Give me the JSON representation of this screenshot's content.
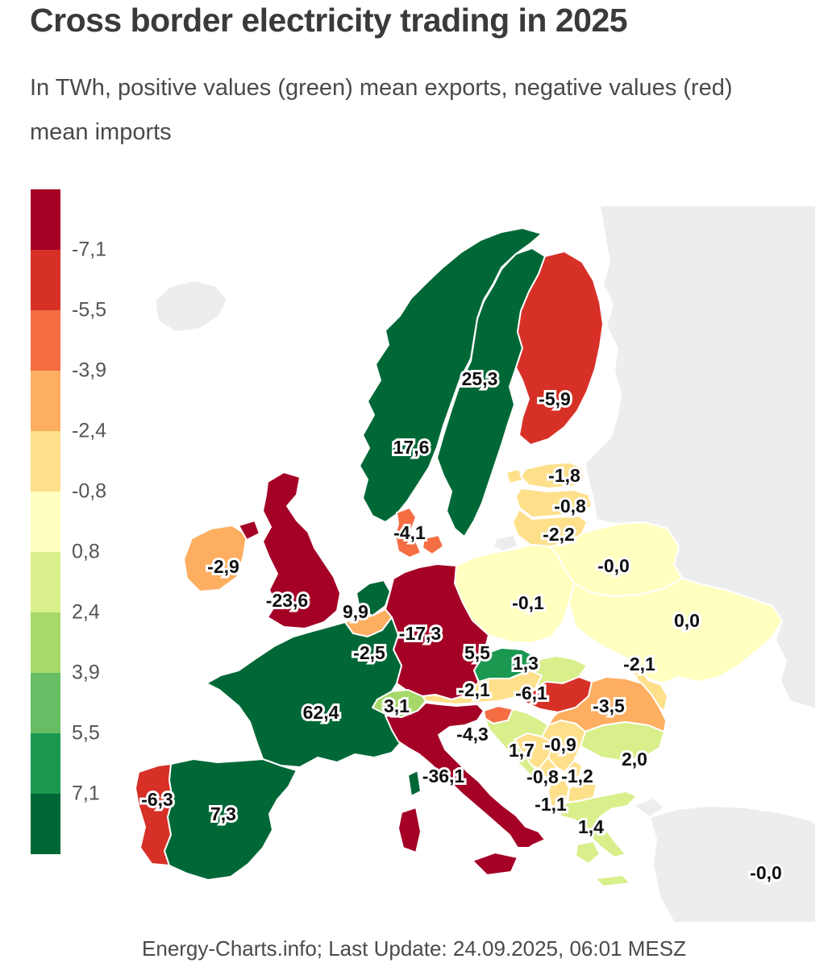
{
  "header": {
    "title": "Cross border electricity trading in 2025",
    "subtitle": "In TWh, positive values (green) mean exports, negative values (red) mean imports"
  },
  "legend": {
    "position": "left",
    "tick_labels": [
      "-7,1",
      "-5,5",
      "-3,9",
      "-2,4",
      "-0,8",
      "0,8",
      "2,4",
      "3,9",
      "5,5",
      "7,1"
    ],
    "colors": [
      "#a50026",
      "#d73027",
      "#f46d43",
      "#fdae61",
      "#fee08b",
      "#ffffbf",
      "#d9ef8b",
      "#a6d96a",
      "#66bd63",
      "#1a9850",
      "#006837"
    ]
  },
  "map": {
    "sea_color": "#ffffff",
    "border_color": "#ffffff",
    "nodata_color": "#ededed",
    "unlabeled_regions": [
      {
        "id": "iceland",
        "color": "#ededed"
      },
      {
        "id": "russia",
        "color": "#ededed"
      },
      {
        "id": "kaliningrad",
        "color": "#ededed"
      },
      {
        "id": "kosovo",
        "color": "#fee08b"
      },
      {
        "id": "north-macedonia",
        "color": "#fee08b"
      }
    ]
  },
  "footer": {
    "attribution": "Energy-Charts.info; Last Update: 24.09.2025, 06:01 MESZ"
  },
  "chart_data": {
    "type": "heatmap",
    "map_type": "choropleth",
    "title": "Cross border electricity trading in 2025",
    "unit": "TWh",
    "value_meaning": "positive values (green) = exports, negative values (red) = imports",
    "color_scale": {
      "ticks": [
        -7.1,
        -5.5,
        -3.9,
        -2.4,
        -0.8,
        0.8,
        2.4,
        3.9,
        5.5,
        7.1
      ],
      "colors": [
        "#a50026",
        "#d73027",
        "#f46d43",
        "#fdae61",
        "#fee08b",
        "#ffffbf",
        "#d9ef8b",
        "#a6d96a",
        "#66bd63",
        "#1a9850",
        "#006837"
      ]
    },
    "countries": [
      {
        "id": "sweden",
        "name": "Sweden",
        "label": "25,3",
        "value": 25.3,
        "color": "#006837"
      },
      {
        "id": "finland",
        "name": "Finland",
        "label": "-5,9",
        "value": -5.9,
        "color": "#d73027"
      },
      {
        "id": "norway",
        "name": "Norway",
        "label": "17,6",
        "value": 17.6,
        "color": "#006837"
      },
      {
        "id": "estonia",
        "name": "Estonia",
        "label": "-1,8",
        "value": -1.8,
        "color": "#fee08b"
      },
      {
        "id": "latvia",
        "name": "Latvia",
        "label": "-0,8",
        "value": -0.8,
        "color": "#fee08b"
      },
      {
        "id": "lithuania",
        "name": "Lithuania",
        "label": "-2,2",
        "value": -2.2,
        "color": "#fee08b"
      },
      {
        "id": "denmark",
        "name": "Denmark",
        "label": "-4,1",
        "value": -4.1,
        "color": "#f46d43"
      },
      {
        "id": "belarus",
        "name": "Belarus",
        "label": "-0,0",
        "value": 0.0,
        "color": "#ffffbf"
      },
      {
        "id": "ireland",
        "name": "Ireland",
        "label": "-2,9",
        "value": -2.9,
        "color": "#fdae61"
      },
      {
        "id": "poland",
        "name": "Poland",
        "label": "-0,1",
        "value": -0.1,
        "color": "#ffffbf"
      },
      {
        "id": "united-kingdom",
        "name": "United Kingdom",
        "label": "-23,6",
        "value": -23.6,
        "color": "#a50026"
      },
      {
        "id": "ukraine",
        "name": "Ukraine",
        "label": "0,0",
        "value": 0.0,
        "color": "#ffffbf"
      },
      {
        "id": "netherlands",
        "name": "Netherlands",
        "label": "9,9",
        "value": 9.9,
        "color": "#006837"
      },
      {
        "id": "germany",
        "name": "Germany",
        "label": "-17,3",
        "value": -17.3,
        "color": "#a50026"
      },
      {
        "id": "belgium",
        "name": "Belgium",
        "label": "-2,5",
        "value": -2.5,
        "color": "#fdae61"
      },
      {
        "id": "czechia",
        "name": "Czechia",
        "label": "5,5",
        "value": 5.5,
        "color": "#1a9850"
      },
      {
        "id": "slovakia",
        "name": "Slovakia",
        "label": "1,3",
        "value": 1.3,
        "color": "#d9ef8b"
      },
      {
        "id": "moldova",
        "name": "Moldova",
        "label": "-2,1",
        "value": -2.1,
        "color": "#fee08b"
      },
      {
        "id": "austria",
        "name": "Austria",
        "label": "-2,1",
        "value": -2.1,
        "color": "#fee08b"
      },
      {
        "id": "hungary",
        "name": "Hungary",
        "label": "-6,1",
        "value": -6.1,
        "color": "#d73027"
      },
      {
        "id": "romania",
        "name": "Romania",
        "label": "-3,5",
        "value": -3.5,
        "color": "#fdae61"
      },
      {
        "id": "france",
        "name": "France",
        "label": "62,4",
        "value": 62.4,
        "color": "#006837"
      },
      {
        "id": "switzerland",
        "name": "Switzerland",
        "label": "3,1",
        "value": 3.1,
        "color": "#a6d96a"
      },
      {
        "id": "slovenia",
        "name": "Slovenia",
        "label": "-4,3",
        "value": -4.3,
        "color": "#f46d43"
      },
      {
        "id": "croatia",
        "name": "Croatia",
        "label": "1,7",
        "value": 1.7,
        "color": "#d9ef8b"
      },
      {
        "id": "serbia",
        "name": "Serbia",
        "label": "-0,9",
        "value": -0.9,
        "color": "#fee08b"
      },
      {
        "id": "italy",
        "name": "Italy",
        "label": "-36,1",
        "value": -36.1,
        "color": "#a50026"
      },
      {
        "id": "bosnia-herzegovina",
        "name": "Bosnia and Herzegovina",
        "label": "-0,8",
        "value": -0.8,
        "color": "#fee08b"
      },
      {
        "id": "montenegro",
        "name": "Montenegro",
        "label": "-1,2",
        "value": -1.2,
        "color": "#fee08b"
      },
      {
        "id": "bulgaria",
        "name": "Bulgaria",
        "label": "2,0",
        "value": 2.0,
        "color": "#d9ef8b"
      },
      {
        "id": "albania",
        "name": "Albania",
        "label": "-1,1",
        "value": -1.1,
        "color": "#fee08b"
      },
      {
        "id": "greece",
        "name": "Greece",
        "label": "1,4",
        "value": 1.4,
        "color": "#d9ef8b"
      },
      {
        "id": "portugal",
        "name": "Portugal",
        "label": "-6,3",
        "value": -6.3,
        "color": "#d73027"
      },
      {
        "id": "spain",
        "name": "Spain",
        "label": "7,3",
        "value": 7.3,
        "color": "#006837"
      },
      {
        "id": "turkey",
        "name": "Turkey",
        "label": "-0,0",
        "value": 0.0,
        "color": "#ededed"
      }
    ]
  }
}
